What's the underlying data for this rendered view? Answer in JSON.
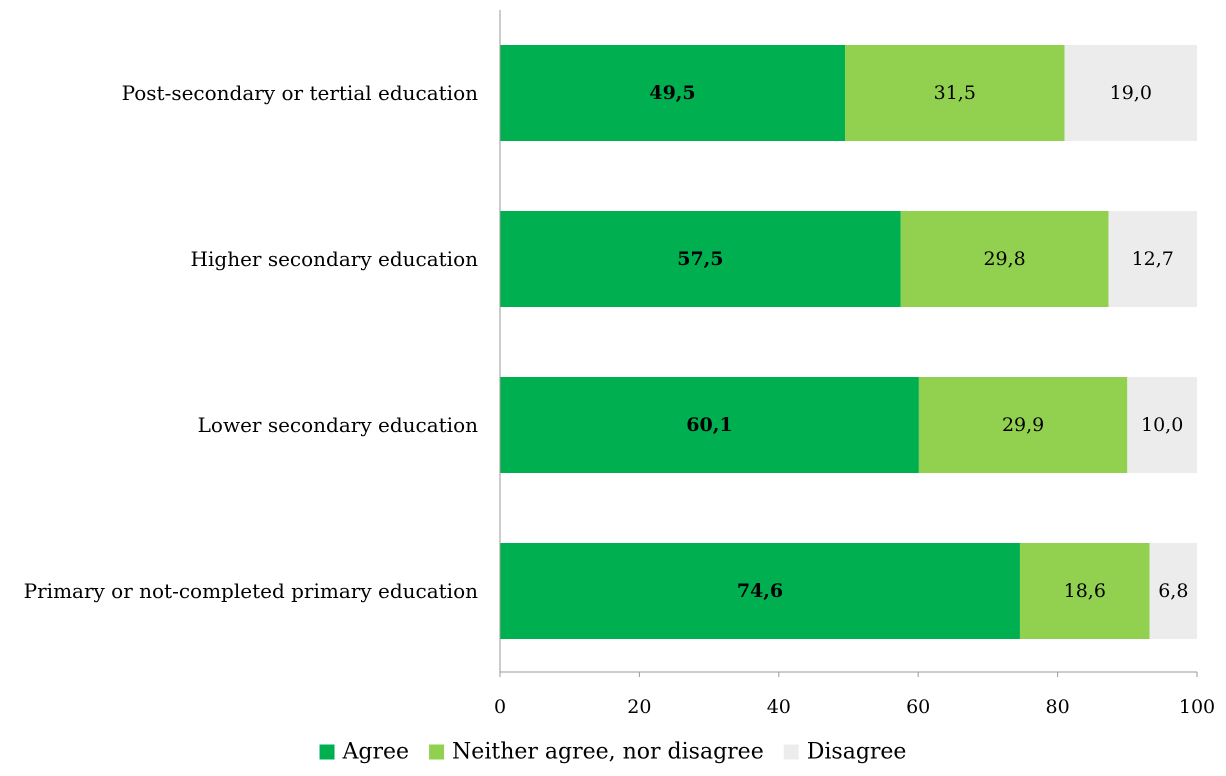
{
  "chart_data": {
    "type": "bar",
    "orientation": "horizontal",
    "stacked": true,
    "categories": [
      "Post-secondary or tertial education",
      "Higher secondary education",
      "Lower secondary education",
      "Primary or not-completed primary education"
    ],
    "series": [
      {
        "name": "Agree",
        "values": [
          49.5,
          57.5,
          60.1,
          74.6
        ],
        "labels": [
          "49,5",
          "57,5",
          "60,1",
          "74,6"
        ],
        "color": "#00b050",
        "bold": true
      },
      {
        "name": "Neither agree, nor disagree",
        "values": [
          31.5,
          29.8,
          29.9,
          18.6
        ],
        "labels": [
          "31,5",
          "29,8",
          "29,9",
          "18,6"
        ],
        "color": "#92d050",
        "bold": false
      },
      {
        "name": "Disagree",
        "values": [
          19.0,
          12.7,
          10.0,
          6.8
        ],
        "labels": [
          "19,0",
          "12,7",
          "10,0",
          "6,8"
        ],
        "color": "#ececec",
        "bold": false
      }
    ],
    "xlim": [
      0,
      100
    ],
    "xticks": [
      0,
      20,
      40,
      60,
      80,
      100
    ],
    "grid": false,
    "legend_position": "bottom"
  }
}
